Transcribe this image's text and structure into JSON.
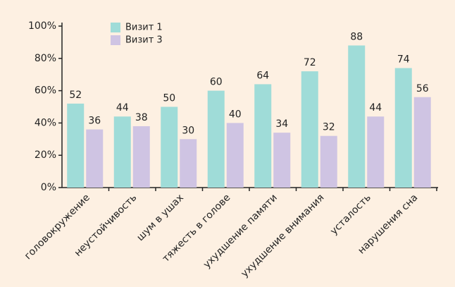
{
  "chart_data": {
    "type": "bar",
    "categories": [
      "головокружение",
      "неустойчивость",
      "шум в ушах",
      "тяжесть в голове",
      "ухудшение памяти",
      "ухудшение внимания",
      "усталость",
      "нарушения сна"
    ],
    "series": [
      {
        "name": "Визит 1",
        "color": "#9fdcd8",
        "values": [
          52,
          44,
          50,
          60,
          64,
          72,
          88,
          74
        ]
      },
      {
        "name": "Визит 3",
        "color": "#cfc4e3",
        "values": [
          36,
          38,
          30,
          40,
          34,
          32,
          44,
          56
        ]
      }
    ],
    "ylim": [
      0,
      100
    ],
    "yticks": [
      {
        "value": 0,
        "label": "0%"
      },
      {
        "value": 20,
        "label": "20%"
      },
      {
        "value": 40,
        "label": "40%"
      },
      {
        "value": 60,
        "label": "60%"
      },
      {
        "value": 80,
        "label": "80%"
      },
      {
        "value": 100,
        "label": "100%"
      }
    ],
    "grid": false
  }
}
